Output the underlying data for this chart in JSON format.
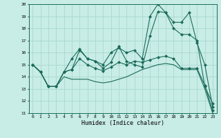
{
  "xlabel": "Humidex (Indice chaleur)",
  "xlim": [
    -0.5,
    23.5
  ],
  "ylim": [
    11,
    20
  ],
  "yticks": [
    11,
    12,
    13,
    14,
    15,
    16,
    17,
    18,
    19,
    20
  ],
  "xticks": [
    0,
    1,
    2,
    3,
    4,
    5,
    6,
    7,
    8,
    9,
    10,
    11,
    12,
    13,
    14,
    15,
    16,
    17,
    18,
    19,
    20,
    21,
    22,
    23
  ],
  "bg_color": "#c8ece6",
  "grid_color": "#a8d8d0",
  "line_color": "#1a6b5a",
  "line1": [
    15.0,
    14.4,
    13.2,
    13.2,
    14.4,
    14.6,
    16.2,
    15.5,
    15.3,
    15.0,
    16.0,
    16.4,
    16.0,
    16.2,
    15.5,
    19.0,
    20.0,
    19.3,
    18.5,
    18.5,
    19.3,
    16.8,
    15.0,
    11.5
  ],
  "line2": [
    15.0,
    14.4,
    13.2,
    13.2,
    14.4,
    15.5,
    16.3,
    15.5,
    15.3,
    14.7,
    15.2,
    16.5,
    15.3,
    15.0,
    14.8,
    17.4,
    19.4,
    19.3,
    18.0,
    17.5,
    17.5,
    17.0,
    13.2,
    11.8
  ],
  "line3": [
    15.0,
    14.4,
    13.2,
    13.2,
    14.4,
    14.6,
    15.5,
    15.0,
    14.7,
    14.5,
    14.8,
    15.2,
    15.0,
    15.3,
    15.2,
    15.4,
    15.6,
    15.7,
    15.5,
    14.7,
    14.7,
    14.7,
    13.3,
    11.2
  ],
  "line4": [
    15.0,
    14.4,
    13.2,
    13.2,
    14.0,
    13.8,
    13.8,
    13.8,
    13.6,
    13.5,
    13.6,
    13.8,
    14.0,
    14.3,
    14.6,
    14.8,
    15.0,
    15.1,
    15.0,
    14.6,
    14.6,
    14.6,
    13.0,
    11.0
  ]
}
